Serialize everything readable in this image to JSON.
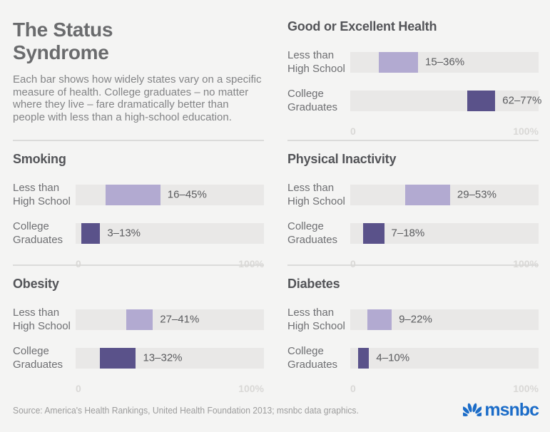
{
  "header": {
    "title": "The Status Syndrome",
    "description": "Each bar shows how widely states vary on a specific measure of health. College graduates – no matter where they live – fare dramatically better than people with less than a high-school education."
  },
  "chart_data": {
    "type": "bar",
    "orientation": "horizontal-range-bar",
    "unit": "%",
    "xlim": [
      0,
      100
    ],
    "xaxis": {
      "min_label": "0",
      "max_label": "100%"
    },
    "categories": [
      "Less than High School",
      "College Graduates"
    ],
    "charts": [
      {
        "title": "Good or Excellent Health",
        "rows": [
          {
            "label": "Less than High School",
            "low": 15,
            "high": 36,
            "value": "15–36%"
          },
          {
            "label": "College Graduates",
            "low": 62,
            "high": 77,
            "value": "62–77%"
          }
        ]
      },
      {
        "title": "Smoking",
        "rows": [
          {
            "label": "Less than High School",
            "low": 16,
            "high": 45,
            "value": "16–45%"
          },
          {
            "label": "College Graduates",
            "low": 3,
            "high": 13,
            "value": "3–13%"
          }
        ]
      },
      {
        "title": "Physical Inactivity",
        "rows": [
          {
            "label": "Less than High School",
            "low": 29,
            "high": 53,
            "value": "29–53%"
          },
          {
            "label": "College Graduates",
            "low": 7,
            "high": 18,
            "value": "7–18%"
          }
        ]
      },
      {
        "title": "Obesity",
        "rows": [
          {
            "label": "Less than High School",
            "low": 27,
            "high": 41,
            "value": "27–41%"
          },
          {
            "label": "College Graduates",
            "low": 13,
            "high": 32,
            "value": "13–32%"
          }
        ]
      },
      {
        "title": "Diabetes",
        "rows": [
          {
            "label": "Less than High School",
            "low": 9,
            "high": 22,
            "value": "9–22%"
          },
          {
            "label": "College Graduates",
            "low": 4,
            "high": 10,
            "value": "4–10%"
          }
        ]
      }
    ]
  },
  "colors": {
    "background": "#f4f4f3",
    "track": "#e9e8e7",
    "bar_light": "#b2aad1",
    "bar_dark": "#5a528a",
    "msnbc_blue": "#1b6cc8"
  },
  "footer": {
    "source": "Source: America's Health Rankings, United Health Foundation 2013; msnbc data graphics.",
    "logo_text": "msnbc"
  }
}
